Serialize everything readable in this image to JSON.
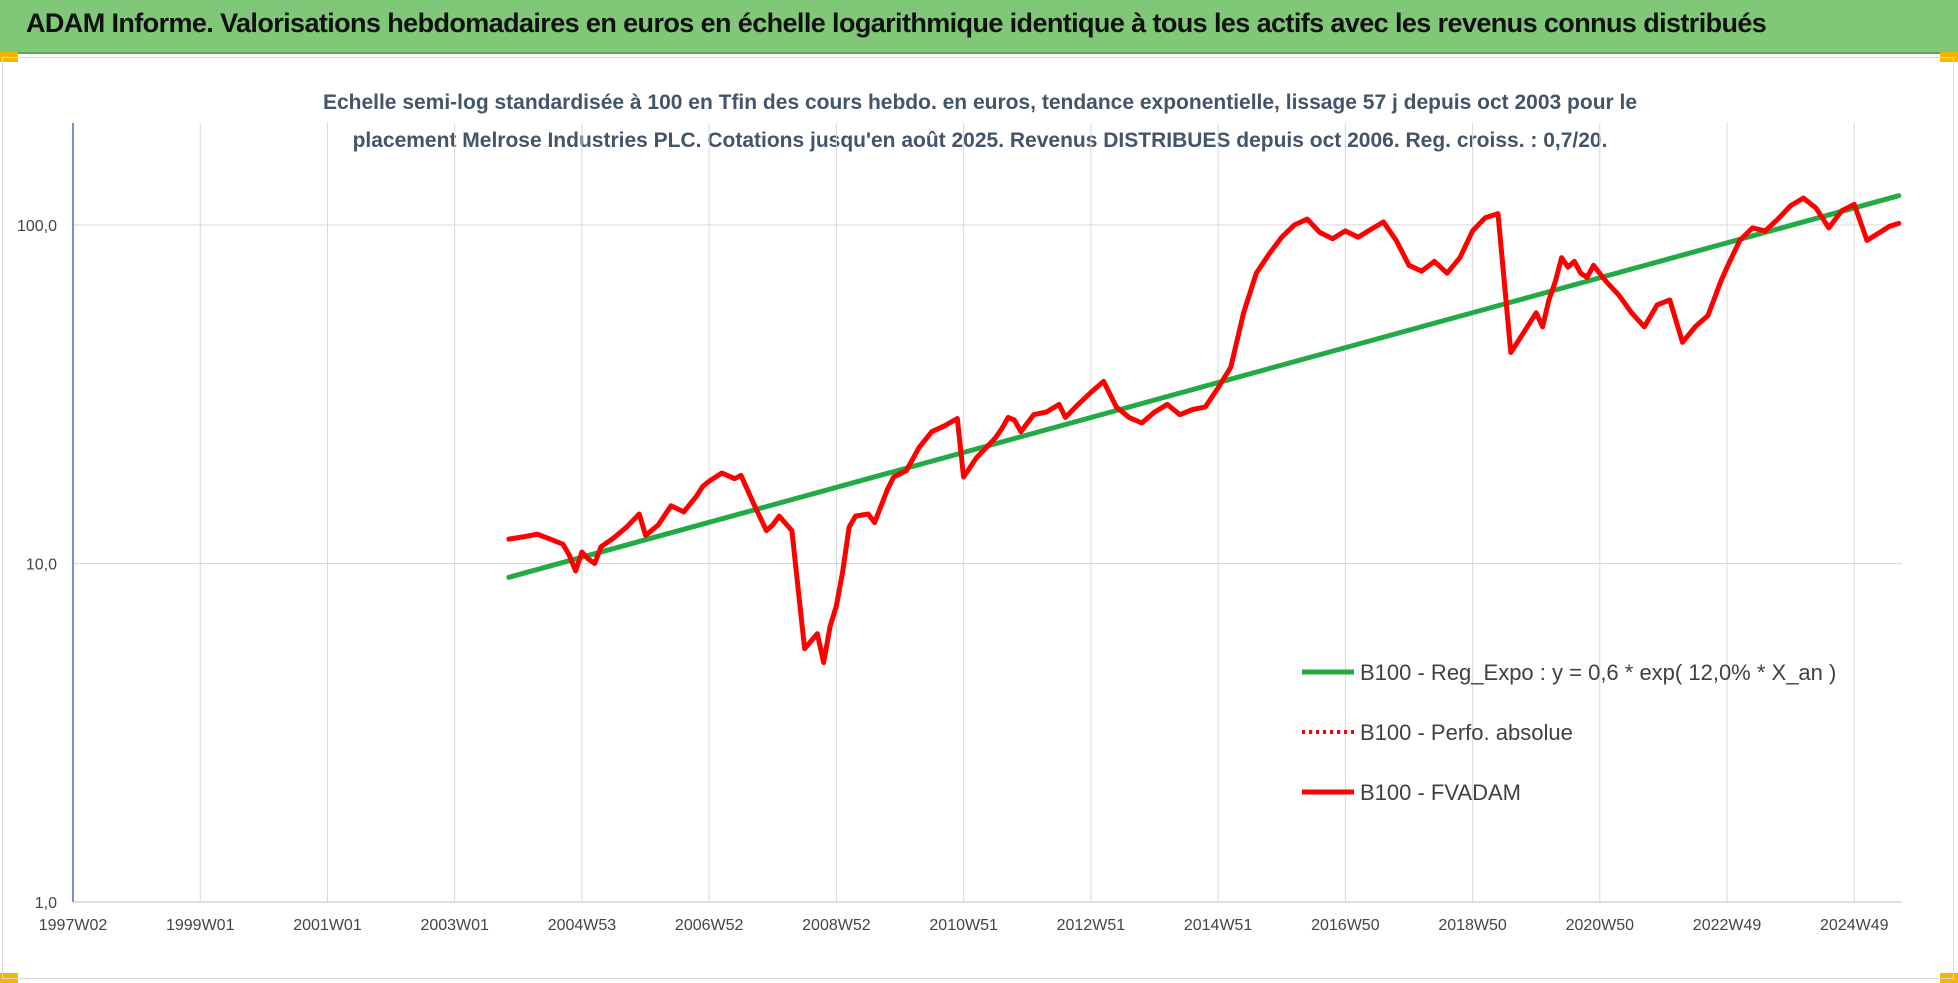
{
  "header": {
    "title": "ADAM Informe. Valorisations hebdomadaires en euros en échelle logarithmique identique à tous les actifs avec les revenus connus distribués"
  },
  "chart_data": {
    "type": "line",
    "title_line1": "Echelle semi-log standardisée à 100 en Tfin des cours hebdo. en euros, tendance exponentielle, lissage 57 j depuis oct 2003 pour le",
    "title_line2": "placement Melrose Industries PLC. Cotations jusqu'en août 2025. Revenus DISTRIBUES depuis oct 2006. Reg. croiss. : 0,7/20.",
    "y_scale": "log",
    "ylim": [
      1,
      200
    ],
    "y_ticks": [
      {
        "value": 1,
        "label": "1,0"
      },
      {
        "value": 10,
        "label": "10,0"
      },
      {
        "value": 100,
        "label": "100,0"
      }
    ],
    "xlim": [
      1997.0,
      2025.75
    ],
    "x_ticks": [
      {
        "value": 1997.0,
        "label": "1997W02"
      },
      {
        "value": 1999.0,
        "label": "1999W01"
      },
      {
        "value": 2001.0,
        "label": "2001W01"
      },
      {
        "value": 2003.0,
        "label": "2003W01"
      },
      {
        "value": 2005.0,
        "label": "2004W53"
      },
      {
        "value": 2007.0,
        "label": "2006W52"
      },
      {
        "value": 2009.0,
        "label": "2008W52"
      },
      {
        "value": 2011.0,
        "label": "2010W51"
      },
      {
        "value": 2013.0,
        "label": "2012W51"
      },
      {
        "value": 2015.0,
        "label": "2014W51"
      },
      {
        "value": 2017.0,
        "label": "2016W50"
      },
      {
        "value": 2019.0,
        "label": "2018W50"
      },
      {
        "value": 2021.0,
        "label": "2020W50"
      },
      {
        "value": 2023.0,
        "label": "2022W49"
      },
      {
        "value": 2025.0,
        "label": "2024W49"
      }
    ],
    "grid": true,
    "legend_position": "bottom-right",
    "series": [
      {
        "name": "B100 - Reg_Expo : y = 0,6 * exp( 12,0% *  X_an )",
        "color": "#22aa44",
        "style": "solid",
        "x": [
          2003.85,
          2025.7
        ],
        "y": [
          9.1,
          122
        ]
      },
      {
        "name": "B100 - Perfo. absolue",
        "color": "#ff0000",
        "style": "dotted",
        "x": [],
        "y": []
      },
      {
        "name": "B100 - FVADAM",
        "color": "#ff0000",
        "style": "solid",
        "x": [
          2003.85,
          2004.1,
          2004.3,
          2004.5,
          2004.7,
          2004.8,
          2004.9,
          2005.0,
          2005.1,
          2005.2,
          2005.3,
          2005.5,
          2005.7,
          2005.9,
          2006.0,
          2006.2,
          2006.4,
          2006.6,
          2006.8,
          2006.9,
          2007.0,
          2007.2,
          2007.4,
          2007.5,
          2007.7,
          2007.9,
          2008.0,
          2008.1,
          2008.3,
          2008.5,
          2008.7,
          2008.8,
          2008.9,
          2009.0,
          2009.1,
          2009.2,
          2009.3,
          2009.5,
          2009.6,
          2009.8,
          2009.9,
          2010.1,
          2010.3,
          2010.5,
          2010.7,
          2010.9,
          2011.0,
          2011.2,
          2011.5,
          2011.6,
          2011.7,
          2011.8,
          2011.9,
          2012.1,
          2012.3,
          2012.5,
          2012.6,
          2012.8,
          2013.0,
          2013.2,
          2013.4,
          2013.6,
          2013.8,
          2014.0,
          2014.2,
          2014.4,
          2014.6,
          2014.8,
          2015.0,
          2015.2,
          2015.4,
          2015.6,
          2015.8,
          2016.0,
          2016.2,
          2016.4,
          2016.6,
          2016.8,
          2017.0,
          2017.2,
          2017.4,
          2017.6,
          2017.8,
          2018.0,
          2018.2,
          2018.4,
          2018.6,
          2018.8,
          2019.0,
          2019.2,
          2019.4,
          2019.6,
          2019.8,
          2020.0,
          2020.1,
          2020.2,
          2020.3,
          2020.4,
          2020.5,
          2020.6,
          2020.7,
          2020.8,
          2020.9,
          2021.1,
          2021.3,
          2021.5,
          2021.7,
          2021.9,
          2022.1,
          2022.3,
          2022.5,
          2022.7,
          2022.9,
          2023.0,
          2023.2,
          2023.4,
          2023.6,
          2023.8,
          2024.0,
          2024.2,
          2024.4,
          2024.6,
          2024.8,
          2025.0,
          2025.2,
          2025.4,
          2025.55,
          2025.7
        ],
        "y": [
          11.8,
          12.0,
          12.2,
          11.8,
          11.4,
          10.6,
          9.5,
          10.8,
          10.3,
          10.0,
          11.2,
          11.9,
          12.8,
          14.0,
          12.1,
          13.0,
          14.8,
          14.2,
          15.8,
          16.9,
          17.5,
          18.5,
          17.8,
          18.2,
          15.0,
          12.5,
          13.0,
          13.8,
          12.5,
          5.6,
          6.2,
          5.1,
          6.5,
          7.5,
          9.5,
          12.8,
          13.8,
          14.0,
          13.2,
          16.5,
          18.0,
          18.8,
          22.0,
          24.5,
          25.5,
          26.8,
          18.0,
          20.5,
          23.5,
          25.0,
          27.0,
          26.5,
          24.5,
          27.5,
          28.0,
          29.5,
          27.0,
          29.5,
          32.0,
          34.5,
          29.0,
          27.0,
          26.0,
          28.0,
          29.5,
          27.5,
          28.5,
          29.0,
          33.0,
          38.0,
          55.0,
          72.0,
          82.0,
          92.0,
          100.0,
          104.0,
          95.0,
          91.0,
          96.0,
          92.0,
          97.0,
          102.0,
          90.0,
          76.0,
          73.0,
          78.0,
          72.0,
          80.0,
          96.0,
          105.0,
          108.0,
          42.0,
          48.0,
          55.0,
          50.0,
          60.0,
          68.0,
          80.0,
          75.0,
          78.0,
          72.0,
          70.0,
          76.0,
          68.0,
          62.0,
          55.0,
          50.0,
          58.0,
          60.0,
          45.0,
          50.0,
          54.0,
          68.0,
          75.0,
          90.0,
          98.0,
          96.0,
          104.0,
          114.0,
          120.0,
          112.0,
          98.0,
          110.0,
          115.0,
          90.0,
          95.0,
          99.0,
          101.0
        ]
      }
    ]
  }
}
